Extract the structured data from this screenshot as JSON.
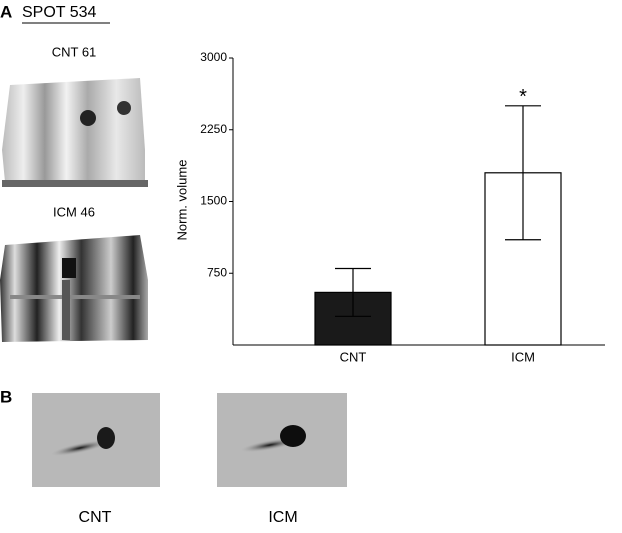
{
  "panel_a": {
    "label": "A",
    "title": "SPOT 534",
    "images": [
      {
        "label": "CNT 61"
      },
      {
        "label": "ICM 46"
      }
    ]
  },
  "chart_data": {
    "type": "bar",
    "y_label": "Norm. volume",
    "categories": [
      "CNT",
      "ICM"
    ],
    "values": [
      550,
      1800
    ],
    "errors": [
      250,
      700
    ],
    "colors": [
      "#1a1a1a",
      "#ffffff"
    ],
    "ylim": [
      0,
      3000
    ],
    "yticks": [
      750,
      1500,
      2250,
      3000
    ],
    "annotation": "*",
    "grid": false
  },
  "panel_b": {
    "label": "B",
    "images": [
      {
        "label": "CNT"
      },
      {
        "label": "ICM"
      }
    ]
  }
}
